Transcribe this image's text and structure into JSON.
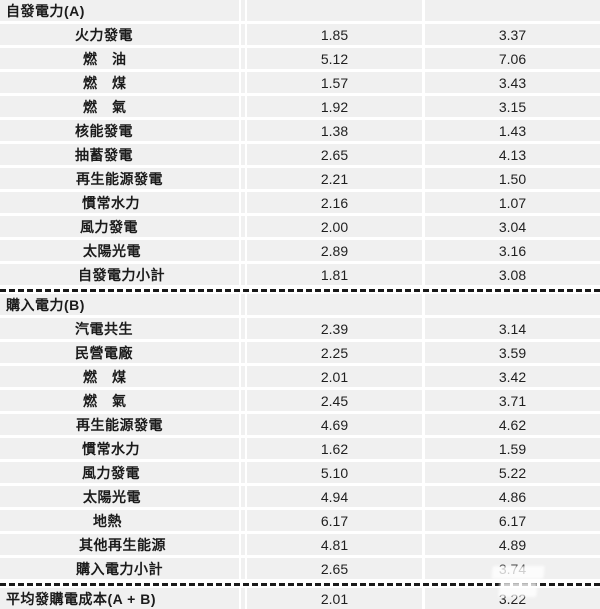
{
  "colors": {
    "row_background": "#f0f0f0",
    "gap": "#ffffff",
    "label_text": "#1b1b1b",
    "value_text": "#1f1f1f",
    "dashed_line": "#191919"
  },
  "table": {
    "rows": [
      {
        "label": "自發電力(A)",
        "indent": 6,
        "v1": "",
        "v2": "",
        "section": true
      },
      {
        "label": "火力發電",
        "indent": 75,
        "v1": "1.85",
        "v2": "3.37"
      },
      {
        "label": "燃　油",
        "indent": 83,
        "v1": "5.12",
        "v2": "7.06"
      },
      {
        "label": "燃　煤",
        "indent": 83,
        "v1": "1.57",
        "v2": "3.43"
      },
      {
        "label": "燃　氣",
        "indent": 83,
        "v1": "1.92",
        "v2": "3.15"
      },
      {
        "label": "核能發電",
        "indent": 75,
        "v1": "1.38",
        "v2": "1.43"
      },
      {
        "label": "抽蓄發電",
        "indent": 75,
        "v1": "2.65",
        "v2": "4.13"
      },
      {
        "label": "再生能源發電",
        "indent": 76,
        "v1": "2.21",
        "v2": "1.50"
      },
      {
        "label": "慣常水力",
        "indent": 82,
        "v1": "2.16",
        "v2": "1.07"
      },
      {
        "label": "風力發電",
        "indent": 80,
        "v1": "2.00",
        "v2": "3.04"
      },
      {
        "label": "太陽光電",
        "indent": 83,
        "v1": "2.89",
        "v2": "3.16"
      },
      {
        "label": "自發電力小計",
        "indent": 78,
        "v1": "1.81",
        "v2": "3.08"
      },
      {
        "type": "dashed"
      },
      {
        "label": "購入電力(B)",
        "indent": 6,
        "v1": "",
        "v2": "",
        "section": true
      },
      {
        "label": "汽電共生",
        "indent": 75,
        "v1": "2.39",
        "v2": "3.14"
      },
      {
        "label": "民營電廠",
        "indent": 75,
        "v1": "2.25",
        "v2": "3.59"
      },
      {
        "label": "燃　煤",
        "indent": 83,
        "v1": "2.01",
        "v2": "3.42"
      },
      {
        "label": "燃　氣",
        "indent": 83,
        "v1": "2.45",
        "v2": "3.71"
      },
      {
        "label": "再生能源發電",
        "indent": 76,
        "v1": "4.69",
        "v2": "4.62"
      },
      {
        "label": "慣常水力",
        "indent": 82,
        "v1": "1.62",
        "v2": "1.59"
      },
      {
        "label": "風力發電",
        "indent": 82,
        "v1": "5.10",
        "v2": "5.22"
      },
      {
        "label": "太陽光電",
        "indent": 83,
        "v1": "4.94",
        "v2": "4.86"
      },
      {
        "label": "地熱",
        "indent": 93,
        "v1": "6.17",
        "v2": "6.17"
      },
      {
        "label": "其他再生能源",
        "indent": 79,
        "v1": "4.81",
        "v2": "4.89"
      },
      {
        "label": "購入電力小計",
        "indent": 76,
        "v1": "2.65",
        "v2": "3.74"
      },
      {
        "type": "dashed"
      },
      {
        "label": "平均發購電成本(A + B)",
        "indent": 6,
        "v1": "2.01",
        "v2": "3.22",
        "section": true
      }
    ]
  },
  "chart_data": {
    "type": "table",
    "rows": [
      [
        "自發電力(A)",
        "",
        ""
      ],
      [
        "火力發電",
        "1.85",
        "3.37"
      ],
      [
        "燃　油",
        "5.12",
        "7.06"
      ],
      [
        "燃　煤",
        "1.57",
        "3.43"
      ],
      [
        "燃　氣",
        "1.92",
        "3.15"
      ],
      [
        "核能發電",
        "1.38",
        "1.43"
      ],
      [
        "抽蓄發電",
        "2.65",
        "4.13"
      ],
      [
        "再生能源發電",
        "2.21",
        "1.50"
      ],
      [
        "慣常水力",
        "2.16",
        "1.07"
      ],
      [
        "風力發電",
        "2.00",
        "3.04"
      ],
      [
        "太陽光電",
        "2.89",
        "3.16"
      ],
      [
        "自發電力小計",
        "1.81",
        "3.08"
      ],
      [
        "購入電力(B)",
        "",
        ""
      ],
      [
        "汽電共生",
        "2.39",
        "3.14"
      ],
      [
        "民營電廠",
        "2.25",
        "3.59"
      ],
      [
        "燃　煤",
        "2.01",
        "3.42"
      ],
      [
        "燃　氣",
        "2.45",
        "3.71"
      ],
      [
        "再生能源發電",
        "4.69",
        "4.62"
      ],
      [
        "慣常水力",
        "1.62",
        "1.59"
      ],
      [
        "風力發電",
        "5.10",
        "5.22"
      ],
      [
        "太陽光電",
        "4.94",
        "4.86"
      ],
      [
        "地熱",
        "6.17",
        "6.17"
      ],
      [
        "其他再生能源",
        "4.81",
        "4.89"
      ],
      [
        "購入電力小計",
        "2.65",
        "3.74"
      ],
      [
        "平均發購電成本(A + B)",
        "2.01",
        "3.22"
      ]
    ]
  }
}
